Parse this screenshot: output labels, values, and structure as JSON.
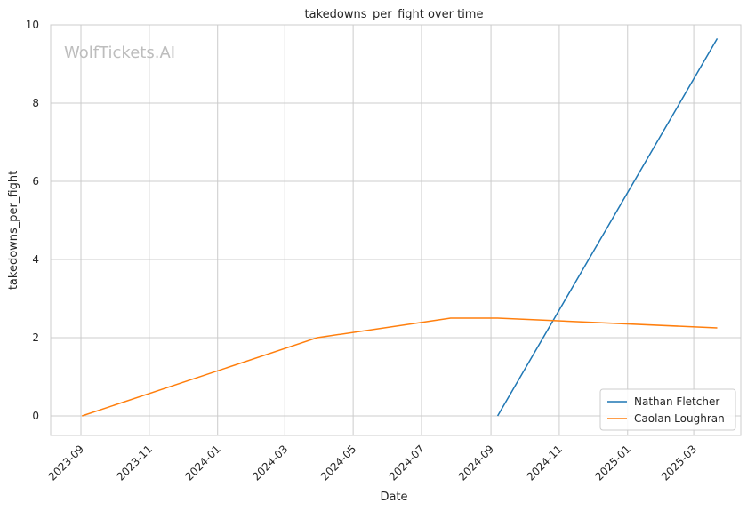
{
  "chart_data": {
    "type": "line",
    "title": "takedowns_per_fight over time",
    "xlabel": "Date",
    "ylabel": "takedowns_per_fight",
    "watermark": "WolfTickets.AI",
    "x_ticks": [
      "2023-09",
      "2023-11",
      "2024-01",
      "2024-03",
      "2024-05",
      "2024-07",
      "2024-09",
      "2024-11",
      "2025-01",
      "2025-03"
    ],
    "y_ticks": [
      0,
      2,
      4,
      6,
      8,
      10
    ],
    "xlim": [
      "2023-08-05",
      "2025-04-12"
    ],
    "ylim": [
      -0.5,
      10.0
    ],
    "grid": true,
    "legend_position": "bottom-right",
    "series": [
      {
        "name": "Nathan Fletcher",
        "color": "#1f77b4",
        "points": [
          {
            "x": "2024-09-07",
            "y": 0.0
          },
          {
            "x": "2025-03-22",
            "y": 9.65
          }
        ]
      },
      {
        "name": "Caolan Loughran",
        "color": "#ff7f0e",
        "points": [
          {
            "x": "2023-09-02",
            "y": 0.0
          },
          {
            "x": "2024-03-30",
            "y": 2.0
          },
          {
            "x": "2024-07-27",
            "y": 2.5
          },
          {
            "x": "2024-09-07",
            "y": 2.5
          },
          {
            "x": "2025-03-22",
            "y": 2.25
          }
        ]
      }
    ]
  }
}
